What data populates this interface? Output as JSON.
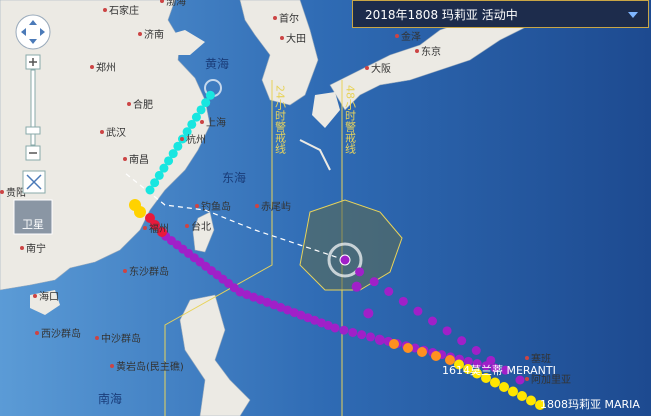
{
  "panel": {
    "title": "2018年1808 玛莉亚 活动中"
  },
  "controls": {
    "layer_button": "卫星"
  },
  "warning_lines": {
    "h24": "24小时警戒线",
    "h48": "48小时警戒线"
  },
  "typhoons": {
    "meranti": "1614莫兰蒂 MERANTI",
    "maria": "1808玛莉亚 MARIA"
  },
  "places": [
    "石家庄",
    "济南",
    "郑州",
    "合肥",
    "武汉",
    "上海",
    "杭州",
    "南昌",
    "福州",
    "台北",
    "贵阳",
    "南宁",
    "海口",
    "东沙群岛",
    "西沙群岛",
    "中沙群岛",
    "黄岩岛(民主礁)",
    "首尔",
    "大田",
    "东京",
    "金泽",
    "塞班",
    "赤尾屿",
    "钓鱼岛",
    "渤海",
    "大阪",
    "阿加里亚"
  ],
  "seas": [
    "黄海",
    "东海",
    "南海"
  ]
}
